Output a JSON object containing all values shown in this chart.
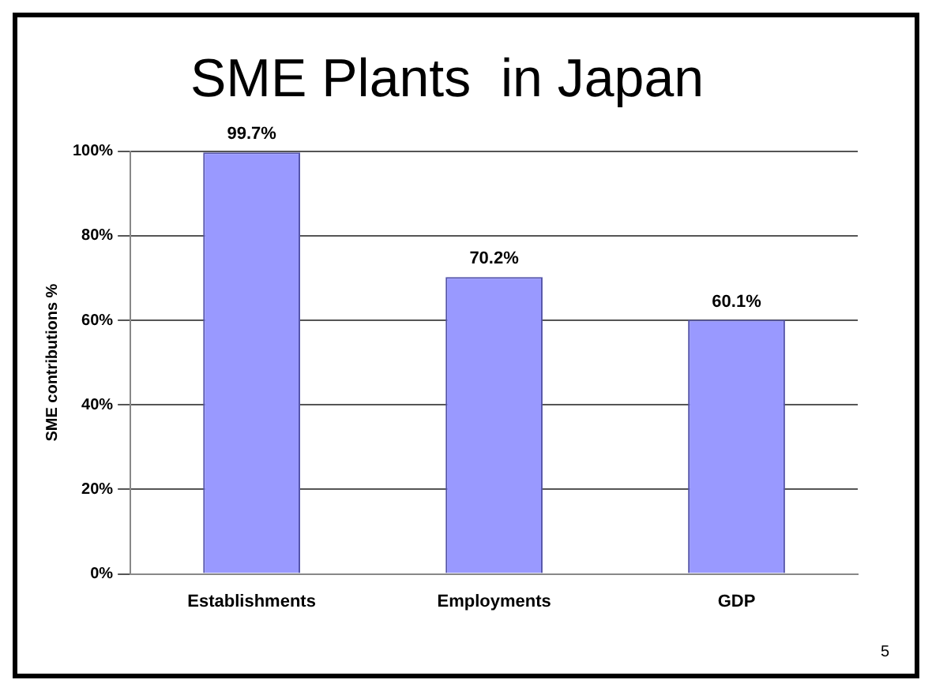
{
  "chart_data": {
    "type": "bar",
    "title": "SME Plants  in Japan",
    "ylabel": "SME contributions %",
    "categories": [
      "Establishments",
      "Employments",
      "GDP"
    ],
    "values": [
      99.7,
      70.2,
      60.1
    ],
    "color": "#9999ff",
    "value_labels": [
      "99.7%",
      "70.2%",
      "60.1%"
    ],
    "ylim": [
      0,
      100
    ],
    "yticks": [
      {
        "value": 0,
        "label": "0%"
      },
      {
        "value": 20,
        "label": "20%"
      },
      {
        "value": 40,
        "label": "40%"
      },
      {
        "value": 60,
        "label": "60%"
      },
      {
        "value": 80,
        "label": "80%"
      },
      {
        "value": 100,
        "label": "100%"
      }
    ],
    "grid": "y",
    "legend": false,
    "annotations": [
      "5"
    ]
  }
}
